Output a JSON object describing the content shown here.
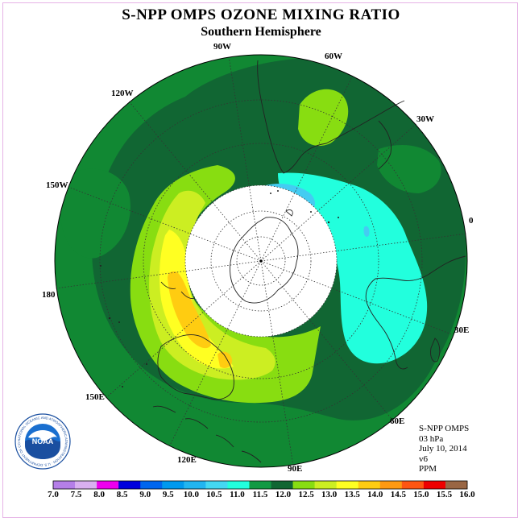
{
  "header": {
    "title": "S-NPP OMPS OZONE MIXING RATIO",
    "subtitle": "Southern Hemisphere"
  },
  "map": {
    "projection": "south-polar-stereographic",
    "longitude_labels": [
      "90W",
      "60W",
      "120W",
      "30W",
      "150W",
      "0",
      "180",
      "30E",
      "150E",
      "60E",
      "120E",
      "90E"
    ],
    "no_data_center": "white polar night region"
  },
  "info": {
    "instrument": "S-NPP OMPS",
    "level": "03 hPa",
    "date": "July 10, 2014",
    "version": "v6",
    "units": "PPM"
  },
  "colorbar": {
    "labels": [
      "7.0",
      "7.5",
      "8.0",
      "8.5",
      "9.0",
      "9.5",
      "10.0",
      "10.5",
      "11.0",
      "11.5",
      "12.0",
      "12.5",
      "13.0",
      "13.5",
      "14.0",
      "14.5",
      "15.0",
      "15.5",
      "16.0"
    ],
    "colors": [
      "#b57fe8",
      "#d9b0f0",
      "#ee00ee",
      "#0000dd",
      "#0066ee",
      "#0099ee",
      "#22b5f0",
      "#44d8f2",
      "#22ffdd",
      "#119944",
      "#116633",
      "#88dd11",
      "#ccee22",
      "#ffff22",
      "#ffcc11",
      "#ff9911",
      "#ff5511",
      "#ee0000",
      "#996644"
    ]
  },
  "logo": {
    "text": "NOAA",
    "ring_text": "NATIONAL OCEANIC AND ATMOSPHERIC ADMINISTRATION · U.S. DEPARTMENT OF COMMERCE"
  },
  "style": {
    "disk_base": "#118833",
    "dark_band": "#116633",
    "light_green": "#88dd11",
    "yellow_green": "#ccee22",
    "yellow": "#ffff22",
    "orange": "#ffcc11",
    "cyan": "#22ffdd",
    "sky": "#44ccf2"
  }
}
